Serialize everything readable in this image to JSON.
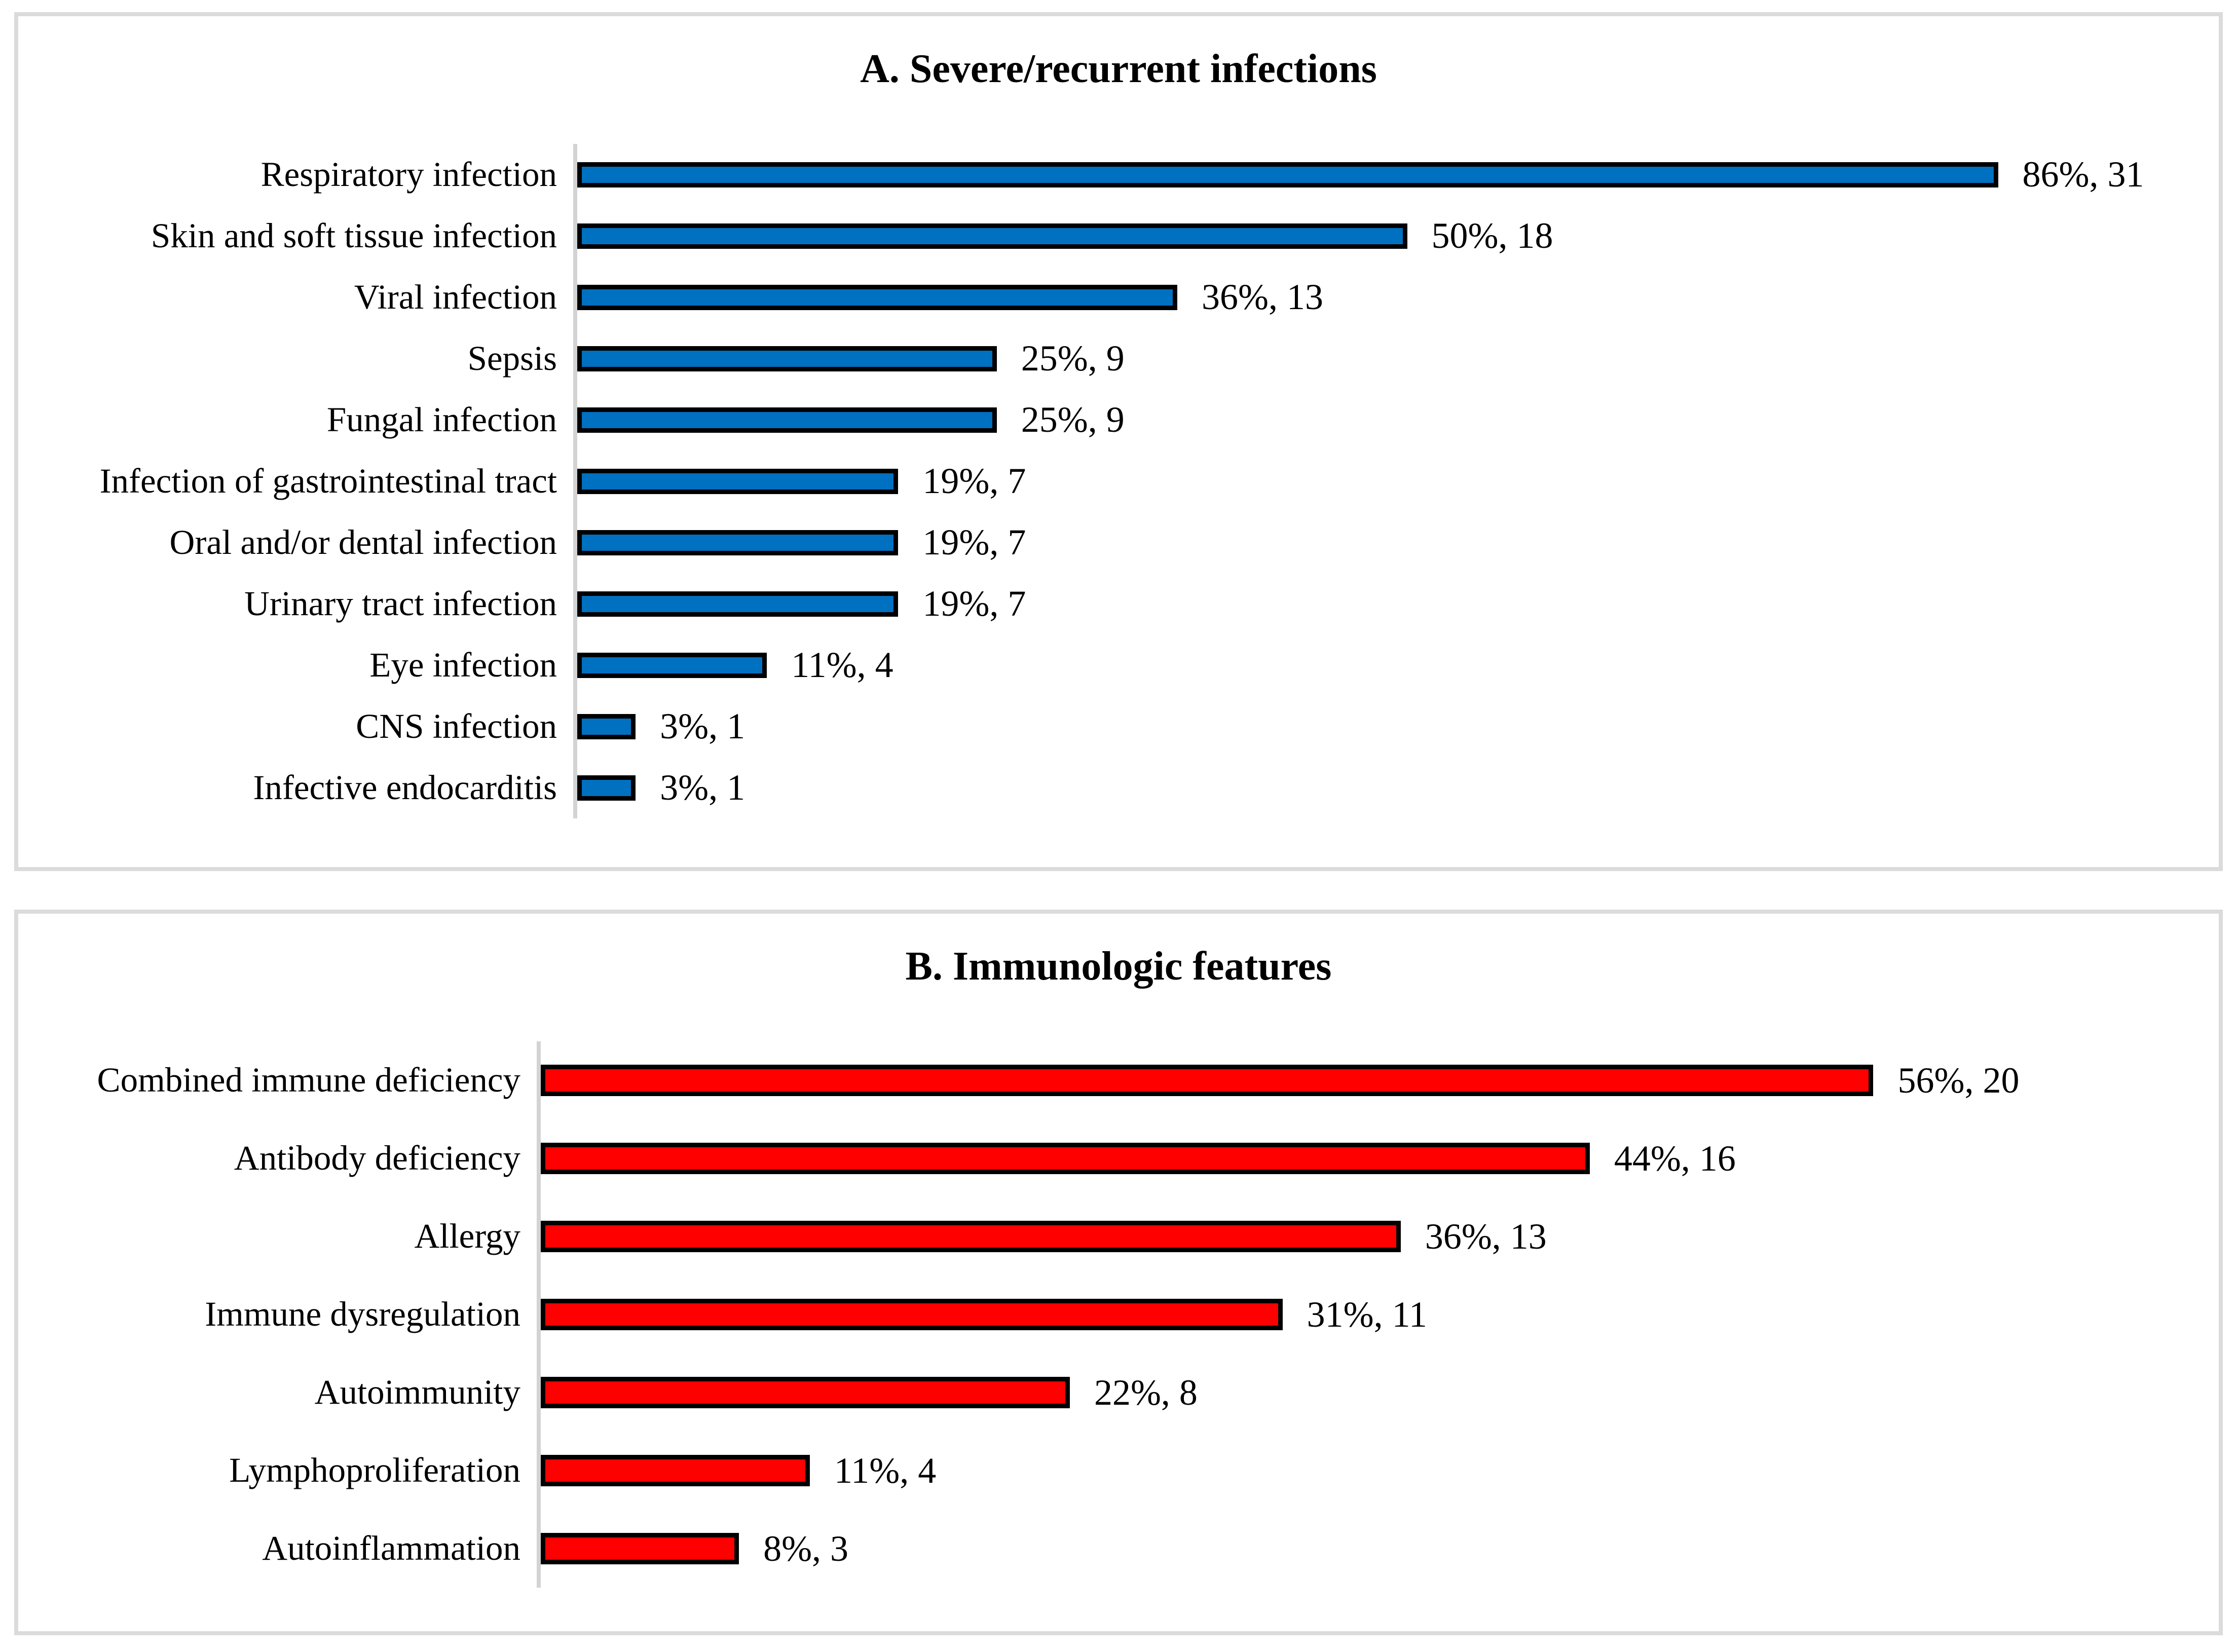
{
  "chart_data": [
    {
      "type": "bar",
      "orientation": "horizontal",
      "title": "A. Severe/recurrent infections",
      "categories": [
        "Respiratory infection",
        "Skin and soft tissue infection",
        "Viral infection",
        "Sepsis",
        "Fungal infection",
        "Infection of gastrointestinal tract",
        "Oral and/or dental infection",
        "Urinary tract infection",
        "Eye infection",
        "CNS infection",
        "Infective endocarditis"
      ],
      "values": [
        86,
        50,
        36,
        25,
        25,
        19,
        19,
        19,
        11,
        3,
        3
      ],
      "counts": [
        31,
        18,
        13,
        9,
        9,
        7,
        7,
        7,
        4,
        1,
        1
      ],
      "data_labels": [
        "86%, 31",
        "50%, 18",
        "36%, 13",
        "25%, 9",
        "25%, 9",
        "19%, 7",
        "19%, 7",
        "19%, 7",
        "11%, 4",
        "3%, 1",
        "3%, 1"
      ],
      "xlabel": "",
      "ylabel": "",
      "xlim": [
        0,
        100
      ],
      "grid": false,
      "legend": false,
      "bar_color": "#0070C0",
      "bar_border_color": "#000000",
      "axis_line_color": "#d3d3d3"
    },
    {
      "type": "bar",
      "orientation": "horizontal",
      "title": "B. Immunologic features",
      "categories": [
        "Combined immune deficiency",
        "Antibody deficiency",
        "Allergy",
        "Immune dysregulation",
        "Autoimmunity",
        "Lymphoproliferation",
        "Autoinflammation"
      ],
      "values": [
        56,
        44,
        36,
        31,
        22,
        11,
        8
      ],
      "counts": [
        20,
        16,
        13,
        11,
        8,
        4,
        3
      ],
      "data_labels": [
        "56%, 20",
        "44%, 16",
        "36%, 13",
        "31%, 11",
        "22%, 8",
        "11%, 4",
        "8%, 3"
      ],
      "xlabel": "",
      "ylabel": "",
      "xlim": [
        0,
        71
      ],
      "grid": false,
      "legend": false,
      "bar_color": "#FF0000",
      "bar_border_color": "#000000",
      "axis_line_color": "#d3d3d3"
    }
  ]
}
